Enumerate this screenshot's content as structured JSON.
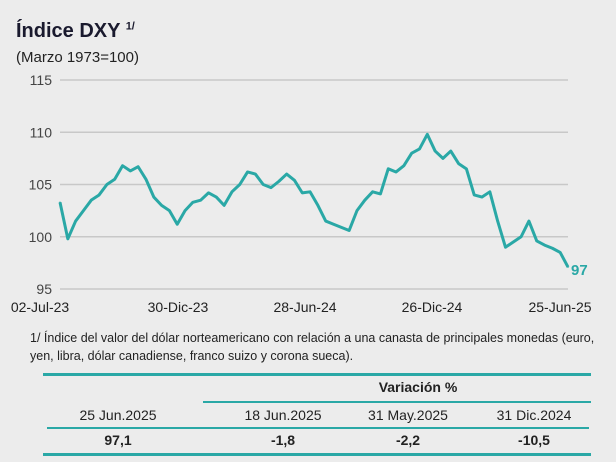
{
  "chart_data": {
    "type": "line",
    "title": "Índice DXY",
    "title_footnote": "1/",
    "subtitle": "(Marzo 1973=100)",
    "xlabel": "",
    "ylabel": "",
    "ylim": [
      95,
      115
    ],
    "yticks": [
      "115",
      "110",
      "105",
      "100",
      "95"
    ],
    "xticks": [
      "02-Jul-23",
      "30-Dic-23",
      "28-Jun-24",
      "26-Dic-24",
      "25-Jun-25"
    ],
    "grid": true,
    "color": "#2aa8a6",
    "end_label": "97",
    "series": [
      {
        "name": "DXY",
        "values": [
          103.3,
          99.8,
          101.5,
          102.5,
          103.5,
          104,
          105,
          105.5,
          106.8,
          106.3,
          106.7,
          105.5,
          103.8,
          103,
          102.5,
          101.2,
          102.5,
          103.3,
          103.5,
          104.2,
          103.8,
          103,
          104.3,
          105,
          106.2,
          106,
          105,
          104.7,
          105.3,
          106,
          105.4,
          104.2,
          104.3,
          103,
          101.5,
          101.2,
          100.9,
          100.6,
          102.5,
          103.5,
          104.3,
          104.1,
          106.5,
          106.2,
          106.8,
          108,
          108.4,
          109.8,
          108.2,
          107.5,
          108.2,
          107,
          106.5,
          104,
          103.8,
          104.3,
          101.5,
          99,
          99.5,
          100,
          101.5,
          99.6,
          99.2,
          98.9,
          98.5,
          97.1
        ]
      }
    ]
  },
  "footnote": "1/ Índice del valor del dólar norteamericano con relación a una canasta de principales monedas (euro, yen, libra, dólar canadiense, franco suizo y corona sueca).",
  "table": {
    "group_header": "Variación %",
    "headers": [
      "25 Jun.2025",
      "18 Jun.2025",
      "31 May.2025",
      "31 Dic.2024"
    ],
    "values": [
      "97,1",
      "-1,8",
      "-2,2",
      "-10,5"
    ]
  }
}
